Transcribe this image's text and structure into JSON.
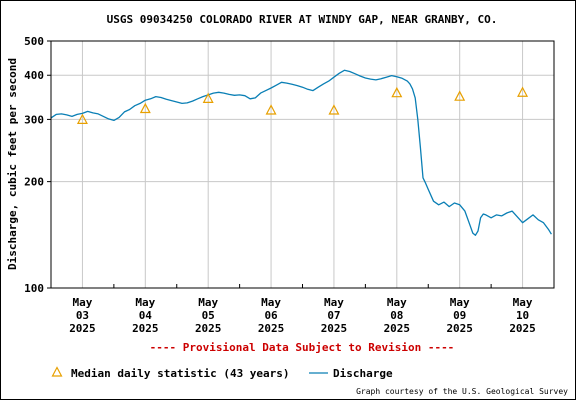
{
  "header": {
    "title": "USGS 09034250 COLORADO RIVER AT WINDY GAP, NEAR GRANBY, CO."
  },
  "footer": {
    "provisional": "---- Provisional Data Subject to Revision ----",
    "credit": "Graph courtesy of the U.S. Geological Survey"
  },
  "legend": {
    "median_label": "Median daily statistic (43 years)",
    "discharge_label": "Discharge"
  },
  "colors": {
    "discharge": "#0a7fb5",
    "median": "#e8a000",
    "provisional": "#cc0000",
    "grid": "#c8c8c8"
  },
  "chart_data": {
    "type": "line",
    "title": "USGS 09034250 COLORADO RIVER AT WINDY GAP, NEAR GRANBY, CO.",
    "ylabel": "Discharge, cubic feet per second",
    "xlabel": "",
    "yscale": "log",
    "ylim": [
      100,
      500
    ],
    "yticks": [
      100,
      200,
      300,
      400,
      500
    ],
    "xlim": [
      "2025-05-02 12:00",
      "2025-05-10 12:00"
    ],
    "grid": true,
    "legend_position": "bottom",
    "x_ticks": [
      {
        "x": "2025-05-03",
        "lines": [
          "May",
          "03",
          "2025"
        ]
      },
      {
        "x": "2025-05-04",
        "lines": [
          "May",
          "04",
          "2025"
        ]
      },
      {
        "x": "2025-05-05",
        "lines": [
          "May",
          "05",
          "2025"
        ]
      },
      {
        "x": "2025-05-06",
        "lines": [
          "May",
          "06",
          "2025"
        ]
      },
      {
        "x": "2025-05-07",
        "lines": [
          "May",
          "07",
          "2025"
        ]
      },
      {
        "x": "2025-05-08",
        "lines": [
          "May",
          "08",
          "2025"
        ]
      },
      {
        "x": "2025-05-09",
        "lines": [
          "May",
          "09",
          "2025"
        ]
      },
      {
        "x": "2025-05-10",
        "lines": [
          "May",
          "10",
          "2025"
        ]
      }
    ],
    "series": [
      {
        "name": "Discharge",
        "points": [
          [
            "2025-05-02 12:00",
            303
          ],
          [
            "2025-05-02 14:00",
            310
          ],
          [
            "2025-05-02 16:00",
            311
          ],
          [
            "2025-05-02 18:00",
            309
          ],
          [
            "2025-05-02 20:00",
            306
          ],
          [
            "2025-05-02 22:00",
            310
          ],
          [
            "2025-05-03 00:00",
            312
          ],
          [
            "2025-05-03 02:00",
            316
          ],
          [
            "2025-05-03 04:00",
            313
          ],
          [
            "2025-05-03 06:00",
            311
          ],
          [
            "2025-05-03 08:00",
            306
          ],
          [
            "2025-05-03 10:00",
            301
          ],
          [
            "2025-05-03 12:00",
            298
          ],
          [
            "2025-05-03 14:00",
            304
          ],
          [
            "2025-05-03 16:00",
            315
          ],
          [
            "2025-05-03 18:00",
            320
          ],
          [
            "2025-05-03 20:00",
            328
          ],
          [
            "2025-05-03 22:00",
            333
          ],
          [
            "2025-05-04 00:00",
            340
          ],
          [
            "2025-05-04 02:00",
            343
          ],
          [
            "2025-05-04 04:00",
            348
          ],
          [
            "2025-05-04 06:00",
            346
          ],
          [
            "2025-05-04 08:00",
            342
          ],
          [
            "2025-05-04 10:00",
            339
          ],
          [
            "2025-05-04 12:00",
            336
          ],
          [
            "2025-05-04 14:00",
            333
          ],
          [
            "2025-05-04 16:00",
            334
          ],
          [
            "2025-05-04 18:00",
            338
          ],
          [
            "2025-05-04 20:00",
            343
          ],
          [
            "2025-05-04 22:00",
            348
          ],
          [
            "2025-05-05 00:00",
            352
          ],
          [
            "2025-05-05 02:00",
            356
          ],
          [
            "2025-05-05 04:00",
            358
          ],
          [
            "2025-05-05 06:00",
            356
          ],
          [
            "2025-05-05 08:00",
            353
          ],
          [
            "2025-05-05 10:00",
            351
          ],
          [
            "2025-05-05 12:00",
            352
          ],
          [
            "2025-05-05 14:00",
            350
          ],
          [
            "2025-05-05 16:00",
            343
          ],
          [
            "2025-05-05 18:00",
            345
          ],
          [
            "2025-05-05 20:00",
            356
          ],
          [
            "2025-05-05 22:00",
            362
          ],
          [
            "2025-05-06 00:00",
            368
          ],
          [
            "2025-05-06 02:00",
            375
          ],
          [
            "2025-05-06 04:00",
            382
          ],
          [
            "2025-05-06 06:00",
            380
          ],
          [
            "2025-05-06 08:00",
            377
          ],
          [
            "2025-05-06 10:00",
            374
          ],
          [
            "2025-05-06 12:00",
            370
          ],
          [
            "2025-05-06 14:00",
            365
          ],
          [
            "2025-05-06 16:00",
            362
          ],
          [
            "2025-05-06 18:00",
            370
          ],
          [
            "2025-05-06 20:00",
            378
          ],
          [
            "2025-05-06 22:00",
            385
          ],
          [
            "2025-05-07 00:00",
            395
          ],
          [
            "2025-05-07 02:00",
            405
          ],
          [
            "2025-05-07 04:00",
            413
          ],
          [
            "2025-05-07 06:00",
            410
          ],
          [
            "2025-05-07 08:00",
            404
          ],
          [
            "2025-05-07 10:00",
            398
          ],
          [
            "2025-05-07 12:00",
            393
          ],
          [
            "2025-05-07 14:00",
            390
          ],
          [
            "2025-05-07 16:00",
            388
          ],
          [
            "2025-05-07 18:00",
            391
          ],
          [
            "2025-05-07 20:00",
            395
          ],
          [
            "2025-05-07 22:00",
            399
          ],
          [
            "2025-05-08 00:00",
            396
          ],
          [
            "2025-05-08 02:00",
            392
          ],
          [
            "2025-05-08 04:00",
            385
          ],
          [
            "2025-05-08 05:00",
            378
          ],
          [
            "2025-05-08 06:00",
            366
          ],
          [
            "2025-05-08 07:00",
            345
          ],
          [
            "2025-05-08 08:00",
            300
          ],
          [
            "2025-05-08 09:00",
            250
          ],
          [
            "2025-05-08 10:00",
            205
          ],
          [
            "2025-05-08 11:00",
            198
          ],
          [
            "2025-05-08 12:00",
            190
          ],
          [
            "2025-05-08 14:00",
            176
          ],
          [
            "2025-05-08 16:00",
            172
          ],
          [
            "2025-05-08 18:00",
            175
          ],
          [
            "2025-05-08 20:00",
            170
          ],
          [
            "2025-05-08 22:00",
            174
          ],
          [
            "2025-05-09 00:00",
            172
          ],
          [
            "2025-05-09 02:00",
            165
          ],
          [
            "2025-05-09 04:00",
            150
          ],
          [
            "2025-05-09 05:00",
            143
          ],
          [
            "2025-05-09 06:00",
            141
          ],
          [
            "2025-05-09 07:00",
            145
          ],
          [
            "2025-05-09 08:00",
            158
          ],
          [
            "2025-05-09 09:00",
            162
          ],
          [
            "2025-05-09 10:00",
            161
          ],
          [
            "2025-05-09 12:00",
            158
          ],
          [
            "2025-05-09 14:00",
            161
          ],
          [
            "2025-05-09 16:00",
            160
          ],
          [
            "2025-05-09 18:00",
            163
          ],
          [
            "2025-05-09 20:00",
            165
          ],
          [
            "2025-05-09 22:00",
            159
          ],
          [
            "2025-05-10 00:00",
            153
          ],
          [
            "2025-05-10 02:00",
            157
          ],
          [
            "2025-05-10 04:00",
            161
          ],
          [
            "2025-05-10 06:00",
            156
          ],
          [
            "2025-05-10 08:00",
            153
          ],
          [
            "2025-05-10 10:00",
            146
          ],
          [
            "2025-05-10 11:00",
            142
          ]
        ]
      },
      {
        "name": "Median daily statistic (43 years)",
        "marker": "triangle",
        "points": [
          [
            "2025-05-03 00:00",
            300
          ],
          [
            "2025-05-04 00:00",
            322
          ],
          [
            "2025-05-05 00:00",
            344
          ],
          [
            "2025-05-06 00:00",
            319
          ],
          [
            "2025-05-07 00:00",
            319
          ],
          [
            "2025-05-08 00:00",
            357
          ],
          [
            "2025-05-09 00:00",
            349
          ],
          [
            "2025-05-10 00:00",
            358
          ]
        ]
      }
    ]
  }
}
